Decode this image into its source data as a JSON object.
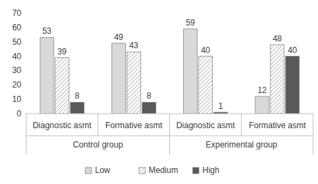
{
  "chart_data": {
    "type": "bar",
    "categories": [
      "Diagnostic asmt",
      "Formative asmt",
      "Diagnostic asmt",
      "Formative asmt"
    ],
    "category_groups": [
      "Control group",
      "Experimental group"
    ],
    "series": [
      {
        "name": "Low",
        "color": "#d9d9d9",
        "values": [
          53,
          49,
          59,
          12
        ]
      },
      {
        "name": "Medium",
        "color": "#ffffff",
        "values": [
          39,
          43,
          40,
          48
        ]
      },
      {
        "name": "High",
        "color": "#595959",
        "values": [
          8,
          8,
          1,
          40
        ]
      }
    ],
    "ylim": [
      0,
      70
    ],
    "yticks": [
      0,
      10,
      20,
      30,
      40,
      50,
      60,
      70
    ],
    "grid": false,
    "data_labels": true,
    "legend": "bottom"
  }
}
